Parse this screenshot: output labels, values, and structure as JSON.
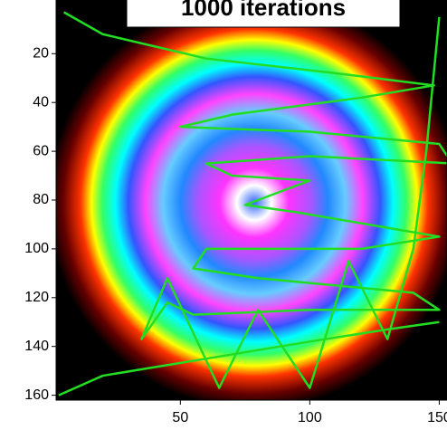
{
  "chart_data": {
    "type": "line",
    "title": "1000 iterations",
    "x": [
      5,
      20,
      60,
      110,
      148,
      120,
      70,
      50,
      100,
      150,
      155,
      100,
      60,
      70,
      100,
      85,
      75,
      95,
      150,
      120,
      60,
      55,
      80,
      140,
      150,
      100,
      55,
      45,
      35,
      45,
      65,
      80,
      100,
      115,
      130,
      140,
      145,
      150,
      null,
      3,
      20,
      60,
      100,
      130,
      150
    ],
    "y": [
      3,
      12,
      22,
      28,
      33,
      38,
      45,
      50,
      52,
      57,
      65,
      62,
      65,
      70,
      72,
      78,
      82,
      85,
      95,
      100,
      100,
      108,
      112,
      118,
      125,
      125,
      127,
      122,
      137,
      112,
      157,
      125,
      157,
      105,
      137,
      100,
      60,
      5,
      null,
      160,
      152,
      145,
      138,
      133,
      130
    ],
    "color": "#22dd22",
    "xlim": [
      2,
      153
    ],
    "ylim": [
      162,
      -2
    ],
    "xticks": [
      50,
      100,
      150
    ],
    "yticks": [
      20,
      40,
      60,
      80,
      100,
      120,
      140,
      160
    ]
  }
}
